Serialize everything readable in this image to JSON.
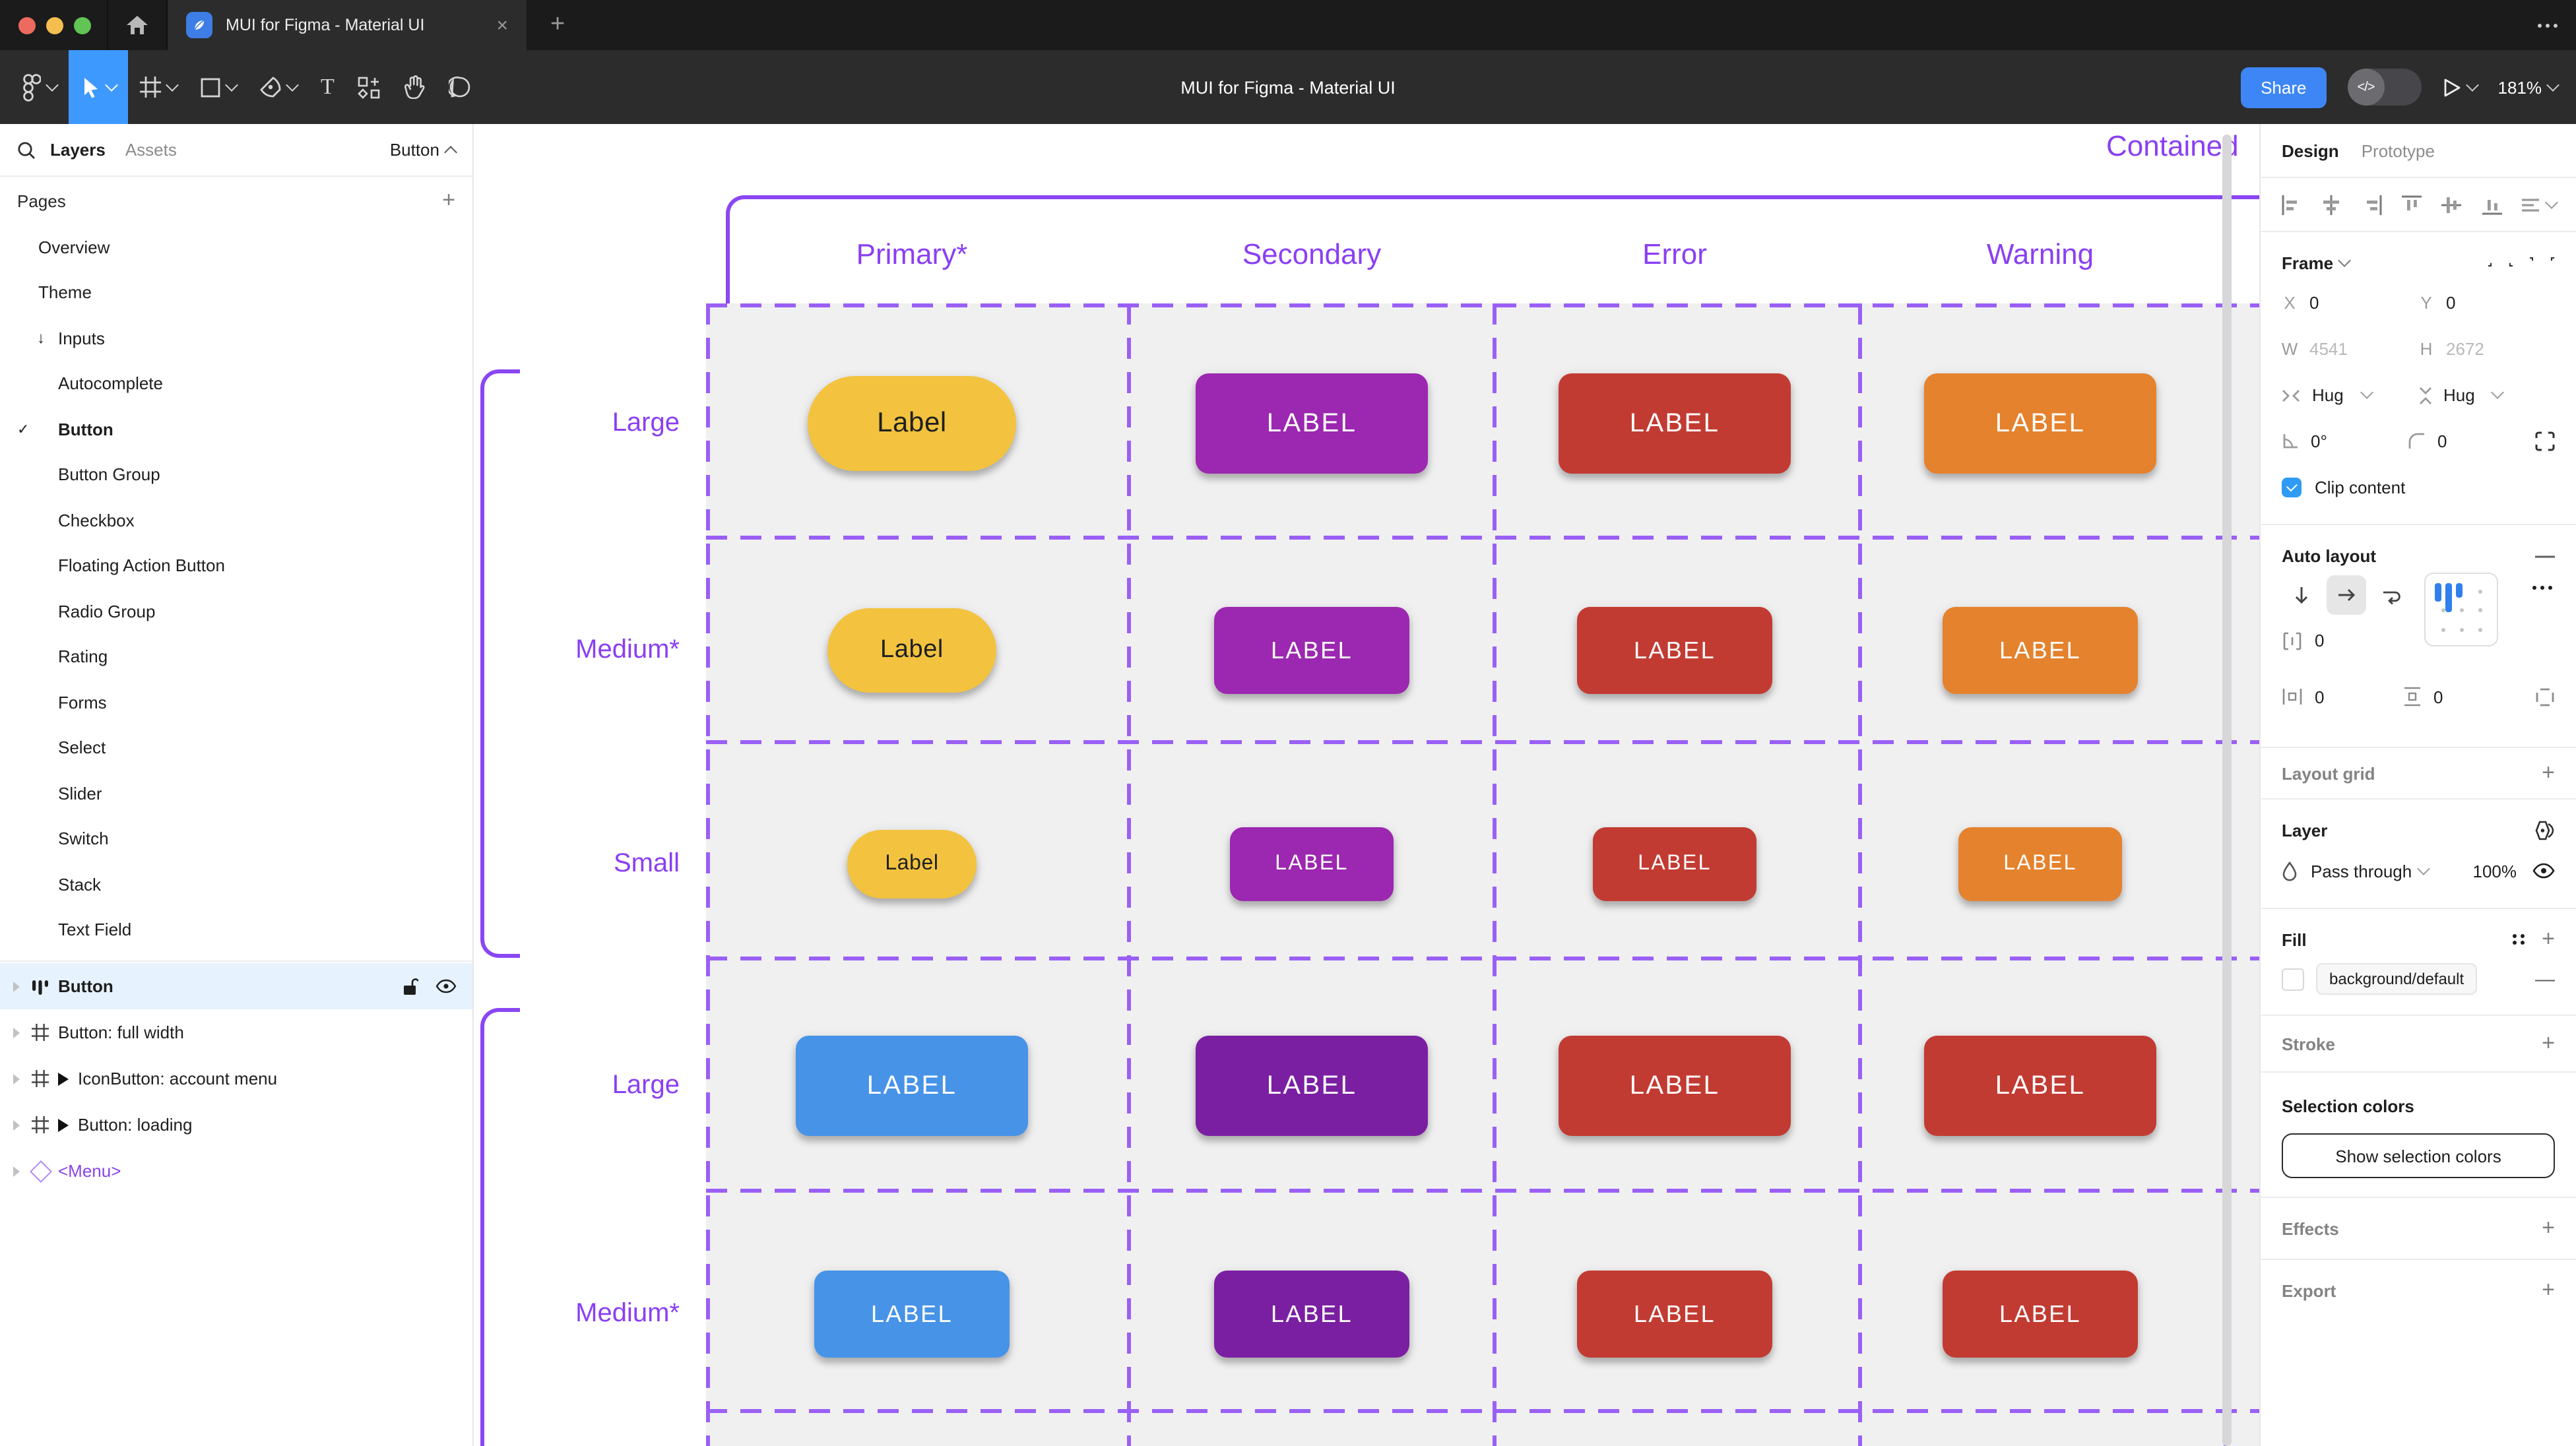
{
  "window": {
    "title": "MUI for Figma - Material UI",
    "close_label": "×",
    "new_tab_label": "+"
  },
  "toolbar": {
    "title": "MUI for Figma - Material UI",
    "share_label": "Share",
    "dev_toggle_label": "</>",
    "zoom_level": "181%",
    "tools": [
      "figma-menu",
      "move",
      "frame",
      "shape",
      "pen",
      "text",
      "resources",
      "hand",
      "comment"
    ]
  },
  "sidebar": {
    "tabs": {
      "layers": "Layers",
      "assets": "Assets"
    },
    "page_switcher": "Button",
    "pages_header": "Pages",
    "pages": [
      {
        "label": "Overview",
        "level": 0
      },
      {
        "label": "Theme",
        "level": 0
      },
      {
        "label": "Inputs",
        "level": 0,
        "arrow": "↓"
      },
      {
        "label": "Autocomplete",
        "level": 1
      },
      {
        "label": "Button",
        "level": 1,
        "checked": true
      },
      {
        "label": "Button Group",
        "level": 1
      },
      {
        "label": "Checkbox",
        "level": 1
      },
      {
        "label": "Floating Action Button",
        "level": 1
      },
      {
        "label": "Radio Group",
        "level": 1
      },
      {
        "label": "Rating",
        "level": 1
      },
      {
        "label": "Forms",
        "level": 1
      },
      {
        "label": "Select",
        "level": 1
      },
      {
        "label": "Slider",
        "level": 1
      },
      {
        "label": "Switch",
        "level": 1
      },
      {
        "label": "Stack",
        "level": 1
      },
      {
        "label": "Text Field",
        "level": 1
      }
    ],
    "layers": [
      {
        "label": "Button",
        "icon": "autolayout",
        "selected": true
      },
      {
        "label": "Button: full width",
        "icon": "frame"
      },
      {
        "label": "IconButton: account menu",
        "icon": "frame",
        "instance": true
      },
      {
        "label": "Button: loading",
        "icon": "frame",
        "instance": true
      },
      {
        "label": "<Menu>",
        "icon": "component",
        "purple": true
      }
    ]
  },
  "canvas": {
    "frame_title": "Contained",
    "columns": [
      "Primary*",
      "Secondary",
      "Error",
      "Warning"
    ],
    "rows": [
      {
        "label": "Large",
        "size": "large",
        "buttons": [
          {
            "text": "Label",
            "color": "primary",
            "pill": true
          },
          {
            "text": "LABEL",
            "color": "secondary"
          },
          {
            "text": "LABEL",
            "color": "error"
          },
          {
            "text": "LABEL",
            "color": "warning"
          }
        ]
      },
      {
        "label": "Medium*",
        "size": "medium",
        "buttons": [
          {
            "text": "Label",
            "color": "primary",
            "pill": true
          },
          {
            "text": "LABEL",
            "color": "secondary"
          },
          {
            "text": "LABEL",
            "color": "error"
          },
          {
            "text": "LABEL",
            "color": "warning"
          }
        ]
      },
      {
        "label": "Small",
        "size": "small",
        "buttons": [
          {
            "text": "Label",
            "color": "primary",
            "pill": true
          },
          {
            "text": "LABEL",
            "color": "secondary"
          },
          {
            "text": "LABEL",
            "color": "error"
          },
          {
            "text": "LABEL",
            "color": "warning"
          }
        ]
      },
      {
        "label": "Large",
        "size": "large",
        "buttons": [
          {
            "text": "LABEL",
            "color": "blue"
          },
          {
            "text": "LABEL",
            "color": "purpleDark"
          },
          {
            "text": "LABEL",
            "color": "error"
          },
          {
            "text": "LABEL",
            "color": "error"
          }
        ]
      },
      {
        "label": "Medium*",
        "size": "medium",
        "buttons": [
          {
            "text": "LABEL",
            "color": "blue"
          },
          {
            "text": "LABEL",
            "color": "purpleDark"
          },
          {
            "text": "LABEL",
            "color": "error"
          },
          {
            "text": "LABEL",
            "color": "error"
          }
        ]
      }
    ],
    "colors": {
      "primary": "#F3C33F",
      "secondary": "#9C27B0",
      "error": "#C23B32",
      "warning": "#E5822D",
      "blue": "#4793E8",
      "purpleDark": "#7B1FA2",
      "accent_purple": "#8B46F3",
      "selection_blue": "#3E99FF"
    }
  },
  "panel": {
    "tabs": {
      "design": "Design",
      "prototype": "Prototype"
    },
    "frame": {
      "header": "Frame",
      "x_label": "X",
      "x": "0",
      "y_label": "Y",
      "y": "0",
      "w_label": "W",
      "w": "4541",
      "h_label": "H",
      "h": "2672",
      "hug_h": "Hug",
      "hug_v": "Hug",
      "rotation": "0°",
      "radius": "0",
      "clip_label": "Clip content"
    },
    "auto_layout": {
      "header": "Auto layout",
      "gap": "0",
      "pad_h": "0",
      "pad_v": "0"
    },
    "layout_grid": {
      "header": "Layout grid"
    },
    "layer": {
      "header": "Layer",
      "blend_mode": "Pass through",
      "opacity": "100%"
    },
    "fill": {
      "header": "Fill",
      "token": "background/default"
    },
    "stroke": {
      "header": "Stroke"
    },
    "selection_colors": {
      "header": "Selection colors",
      "button": "Show selection colors"
    },
    "effects": {
      "header": "Effects"
    },
    "export": {
      "header": "Export"
    }
  }
}
